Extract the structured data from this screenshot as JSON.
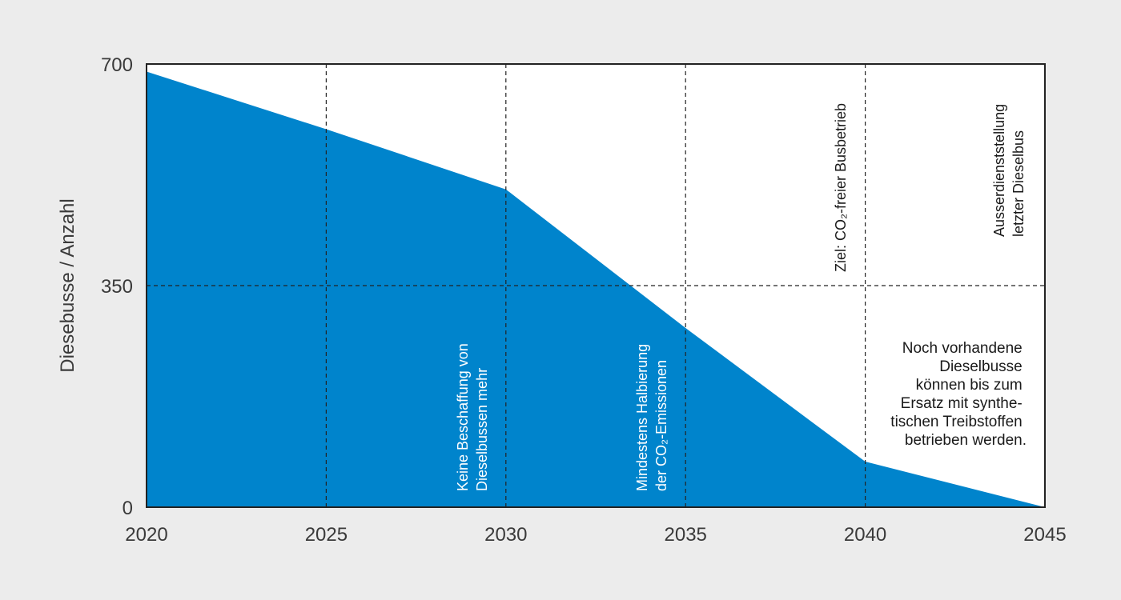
{
  "chart_data": {
    "type": "area",
    "title": "",
    "xlabel": "",
    "ylabel": "Diesebusse / Anzahl",
    "xlim": [
      2020,
      2045
    ],
    "ylim": [
      0,
      700
    ],
    "x": [
      2020,
      2025,
      2030,
      2035,
      2040,
      2045
    ],
    "y": [
      688,
      597,
      502,
      283,
      72,
      0
    ],
    "xticks": [
      "2020",
      "2025",
      "2030",
      "2035",
      "2040",
      "2045"
    ],
    "yticks": [
      "0",
      "350",
      "700"
    ],
    "ytick_values": [
      0,
      350,
      700
    ],
    "xgrid_values": [
      2025,
      2030,
      2035,
      2040
    ],
    "ygrid_values": [
      350
    ],
    "fill_color": "#0084cc",
    "annotations": {
      "a2030": {
        "x": 2030,
        "lines": [
          "Keine Beschaffung von",
          "Dieselbussen mehr"
        ]
      },
      "a2035": {
        "x": 2035,
        "lines": [
          "Mindestens Halbierung",
          "der CO₂-Emissionen"
        ]
      },
      "a2040": {
        "x": 2040,
        "lines": [
          "Ziel: CO₂-freier Busbetrieb"
        ]
      },
      "a2045": {
        "x": 2045,
        "lines": [
          "Ausserdienststellung",
          "letzter Dieselbus"
        ]
      }
    },
    "note": [
      "Noch vorhandene",
      "Dieselbusse",
      "können bis zum",
      "Ersatz mit synthe-",
      "tischen Treibstoffen",
      "betrieben werden."
    ]
  }
}
